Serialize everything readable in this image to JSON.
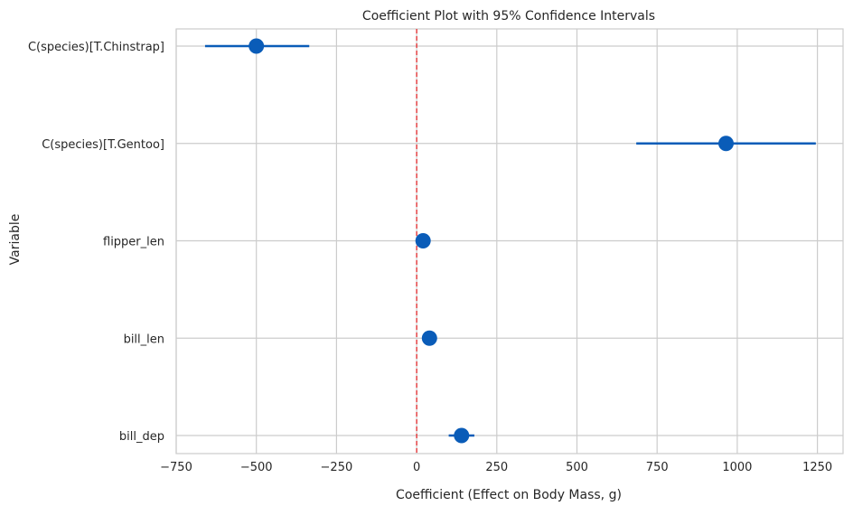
{
  "chart_data": {
    "type": "scatter",
    "title": "Coefficient Plot with 95% Confidence Intervals",
    "xlabel": "Coefficient (Effect on Body Mass, g)",
    "ylabel": "Variable",
    "xlim": [
      -750,
      1330
    ],
    "xticks": [
      -750,
      -500,
      -250,
      0,
      250,
      500,
      750,
      1000,
      1250
    ],
    "xtick_labels": [
      "−750",
      "−500",
      "−250",
      "0",
      "250",
      "500",
      "750",
      "1000",
      "1250"
    ],
    "categories": [
      "C(species)[T.Chinstrap]",
      "C(species)[T.Gentoo]",
      "flipper_len",
      "bill_len",
      "bill_dep"
    ],
    "values": [
      -500,
      965,
      20,
      40,
      140
    ],
    "ci_low": [
      -660,
      685,
      10,
      25,
      100
    ],
    "ci_high": [
      -335,
      1245,
      30,
      55,
      180
    ],
    "reference_line": 0,
    "grid": true,
    "colors": {
      "point": "#0a5cb8",
      "reference": "#e31a1c",
      "grid": "#cccccc",
      "spine": "#cccccc"
    }
  }
}
